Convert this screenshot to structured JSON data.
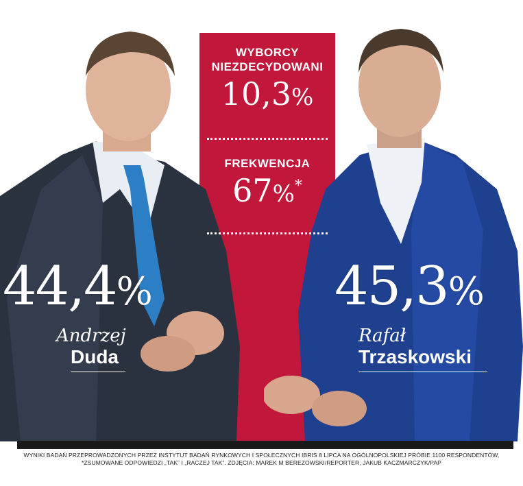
{
  "center": {
    "undecided_label_line1": "WYBORCY",
    "undecided_label_line2": "NIEZDECYDOWANI",
    "undecided_value": "10,3",
    "turnout_label": "FREKWENCJA",
    "turnout_value": "67",
    "turnout_asterisk": "*",
    "percent_sign": "%"
  },
  "left_candidate": {
    "percent": "44,4",
    "first_name": "Andrzej",
    "last_name": "Duda"
  },
  "right_candidate": {
    "percent": "45,3",
    "first_name": "Rafał",
    "last_name": "Trzaskowski"
  },
  "footnote": {
    "line1": "WYNIKI BADAŃ PRZEPROWADZONYCH PRZEZ INSTYTUT BADAŃ RYNKOWYCH I SPOŁECZNYCH IBRIS 8 LIPCA NA OGÓLNOPOLSKIEJ PRÓBIE 1100 RESPONDENTÓW,",
    "line2": "*ZSUMOWANE ODPOWIEDZI „TAK” I „RACZEJ TAK”. ZDJĘCIA: MAREK M BEREZOWSKI/REPORTER, JAKUB KACZMARCZYK/PAP"
  },
  "colors": {
    "accent_red": "#c0173a",
    "left_suit": "#2a3240",
    "right_suit": "#1f3f8f"
  }
}
